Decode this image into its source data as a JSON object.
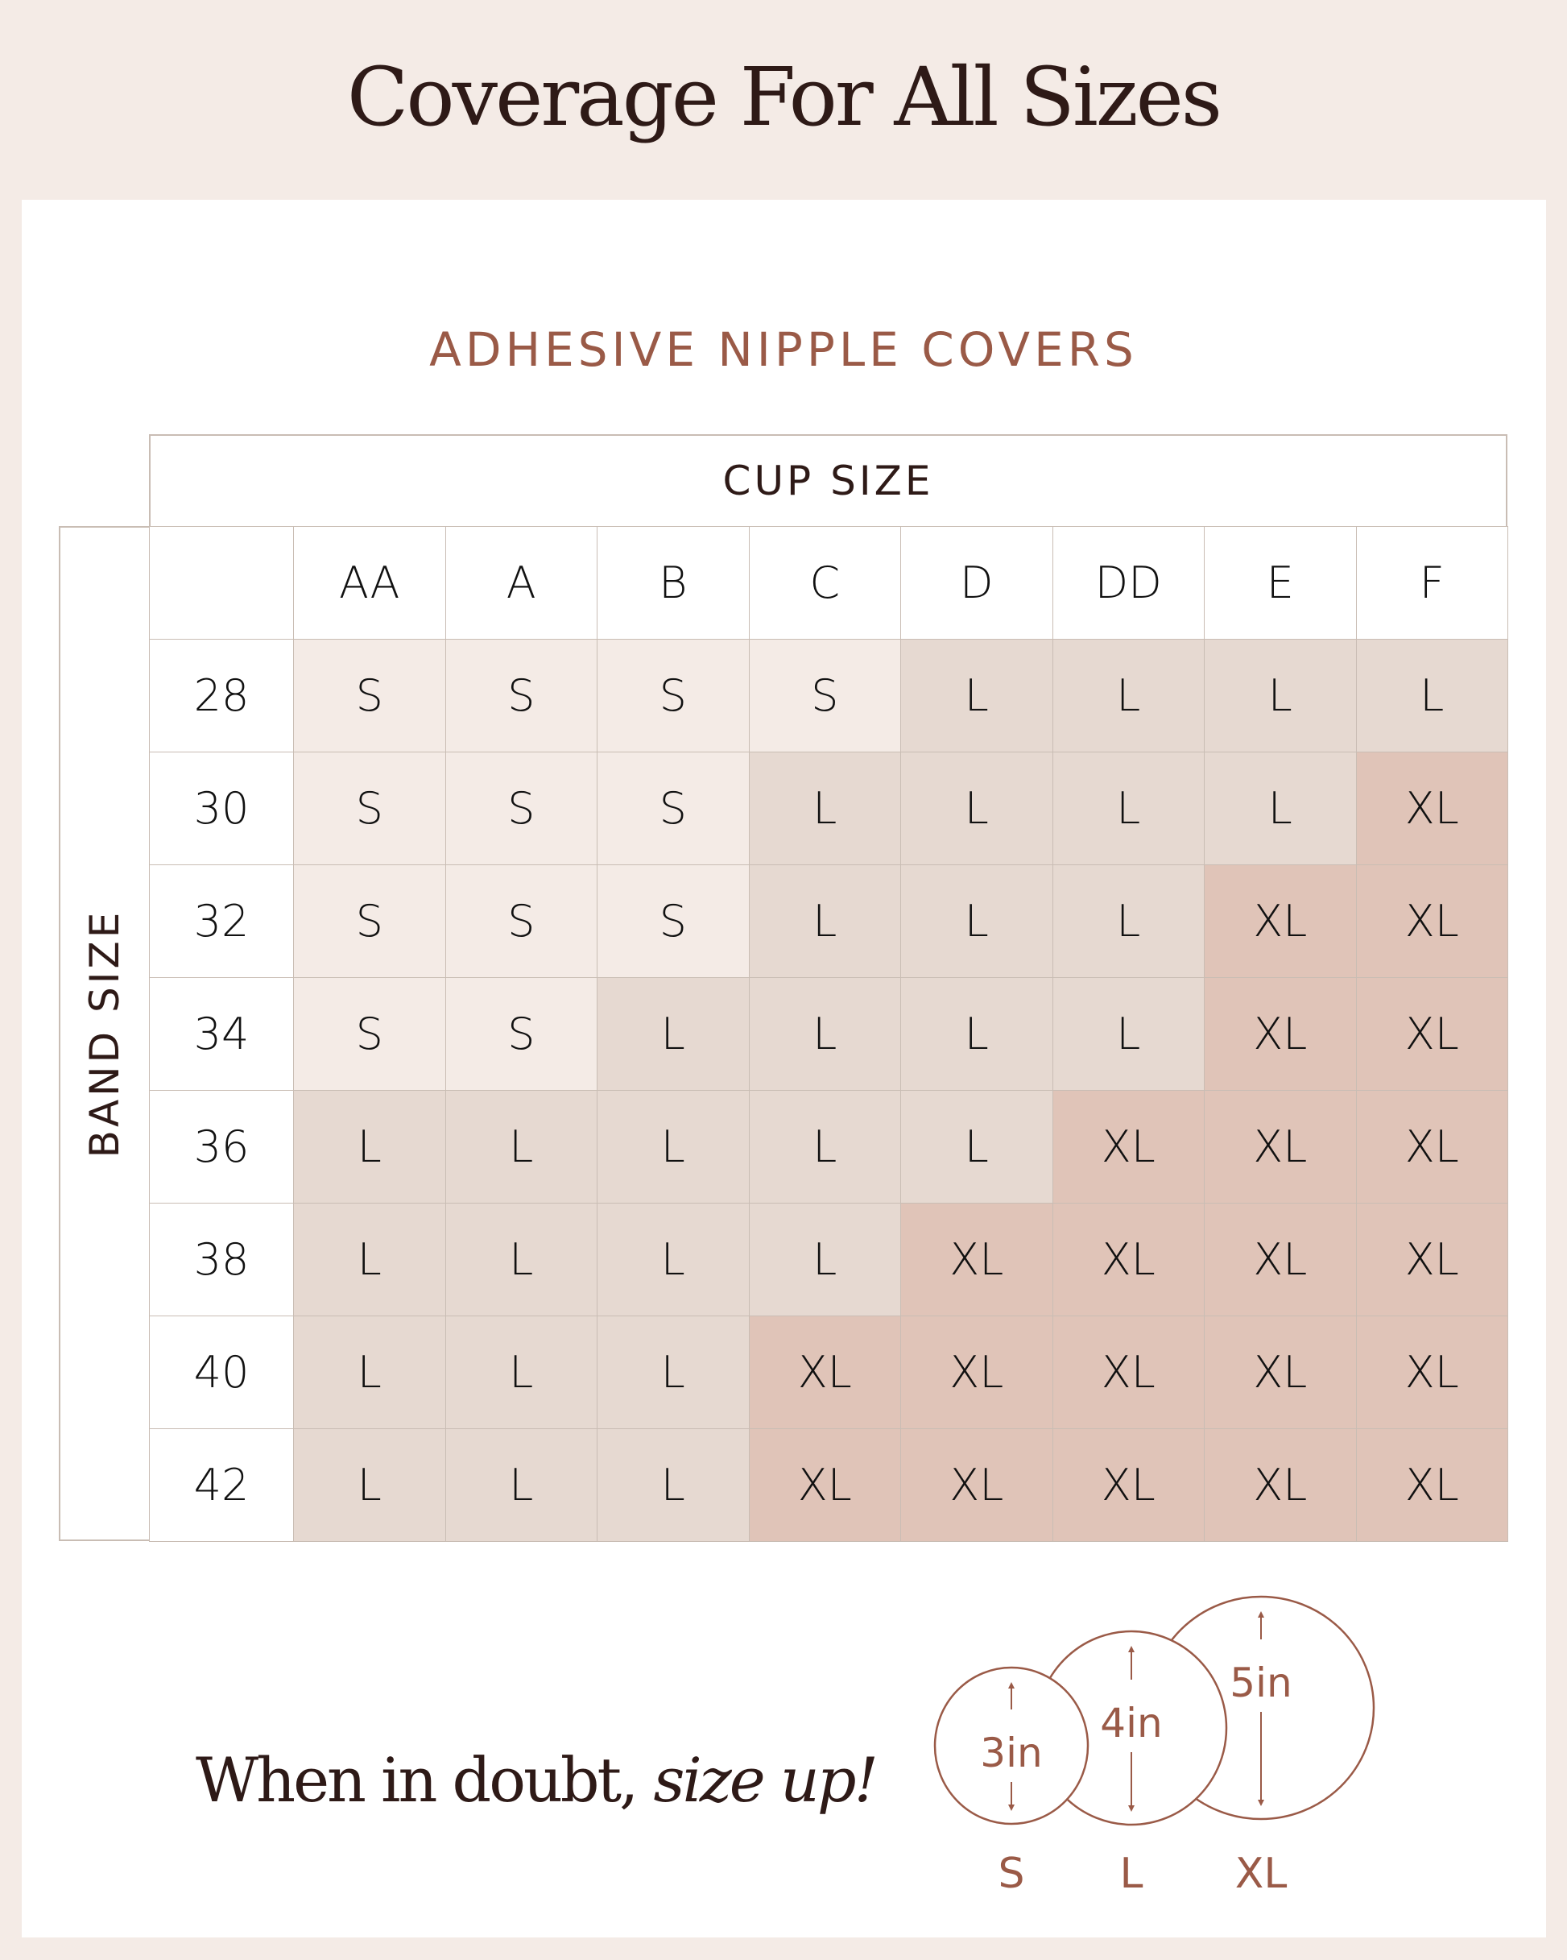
{
  "title": "Coverage For All Sizes",
  "subtitle": "ADHESIVE NIPPLE COVERS",
  "table": {
    "cup_label": "CUP SIZE",
    "band_label": "BAND SIZE",
    "cups": [
      "AA",
      "A",
      "B",
      "C",
      "D",
      "DD",
      "E",
      "F"
    ],
    "bands": [
      "28",
      "30",
      "32",
      "34",
      "36",
      "38",
      "40",
      "42"
    ],
    "rows": [
      [
        "S",
        "S",
        "S",
        "S",
        "L",
        "L",
        "L",
        "L"
      ],
      [
        "S",
        "S",
        "S",
        "L",
        "L",
        "L",
        "L",
        "XL"
      ],
      [
        "S",
        "S",
        "S",
        "L",
        "L",
        "L",
        "XL",
        "XL"
      ],
      [
        "S",
        "S",
        "L",
        "L",
        "L",
        "L",
        "XL",
        "XL"
      ],
      [
        "L",
        "L",
        "L",
        "L",
        "L",
        "XL",
        "XL",
        "XL"
      ],
      [
        "L",
        "L",
        "L",
        "L",
        "XL",
        "XL",
        "XL",
        "XL"
      ],
      [
        "L",
        "L",
        "L",
        "XL",
        "XL",
        "XL",
        "XL",
        "XL"
      ],
      [
        "L",
        "L",
        "L",
        "XL",
        "XL",
        "XL",
        "XL",
        "XL"
      ]
    ],
    "colors": {
      "S": "#f4ebe6",
      "L": "#e6d9d1",
      "XL": "#e0c4b8"
    }
  },
  "footer": {
    "text": "When in doubt,",
    "emphasis": "size up!"
  },
  "sizes": [
    {
      "label": "S",
      "diameter": "3in"
    },
    {
      "label": "L",
      "diameter": "4in"
    },
    {
      "label": "XL",
      "diameter": "5in"
    }
  ],
  "accent": "#9a5a47"
}
